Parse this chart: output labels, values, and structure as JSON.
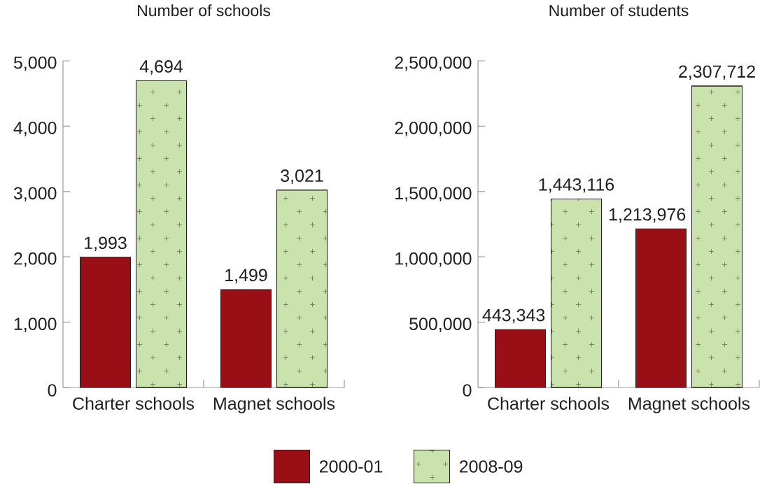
{
  "chart_data": [
    {
      "type": "bar",
      "title": "Number of schools",
      "categories": [
        "Charter schools",
        "Magnet schools"
      ],
      "series": [
        {
          "name": "2000-01",
          "color": "#9a0f15",
          "values": [
            1993,
            1499
          ],
          "value_labels": [
            "1,993",
            "1,499"
          ]
        },
        {
          "name": "2008-09",
          "color": "#cae2ab",
          "values": [
            4694,
            3021
          ],
          "value_labels": [
            "4,694",
            "3,021"
          ]
        }
      ],
      "ylim": [
        0,
        5000
      ],
      "yticks": [
        0,
        {
          "value": 1000,
          "label": "1,000"
        },
        {
          "value": 2000,
          "label": "2,000"
        },
        {
          "value": 3000,
          "label": "3,000"
        },
        {
          "value": 4000,
          "label": "4,000"
        },
        {
          "value": 5000,
          "label": "5,000"
        }
      ],
      "legend": "bottom"
    },
    {
      "type": "bar",
      "title": "Number of students",
      "categories": [
        "Charter schools",
        "Magnet schools"
      ],
      "series": [
        {
          "color": "#9a0f15",
          "values": [
            443343,
            1213976
          ],
          "value_labels": [
            "443,343",
            "1,213,976"
          ]
        },
        {
          "color": "#cae2ab",
          "values": [
            1443116,
            2307712
          ],
          "value_labels": [
            "1,443,116",
            "2,307,712"
          ]
        }
      ],
      "ylim": [
        0,
        2500000
      ],
      "yticks": [
        0,
        {
          "value": 500000,
          "label": "500,000"
        },
        {
          "value": 1000000,
          "label": "1,000,000"
        },
        {
          "value": 1500000,
          "label": "1,500,000"
        },
        {
          "value": 2000000,
          "label": "2,000,000"
        },
        {
          "value": 2500000,
          "label": "2,500,000"
        }
      ]
    }
  ]
}
